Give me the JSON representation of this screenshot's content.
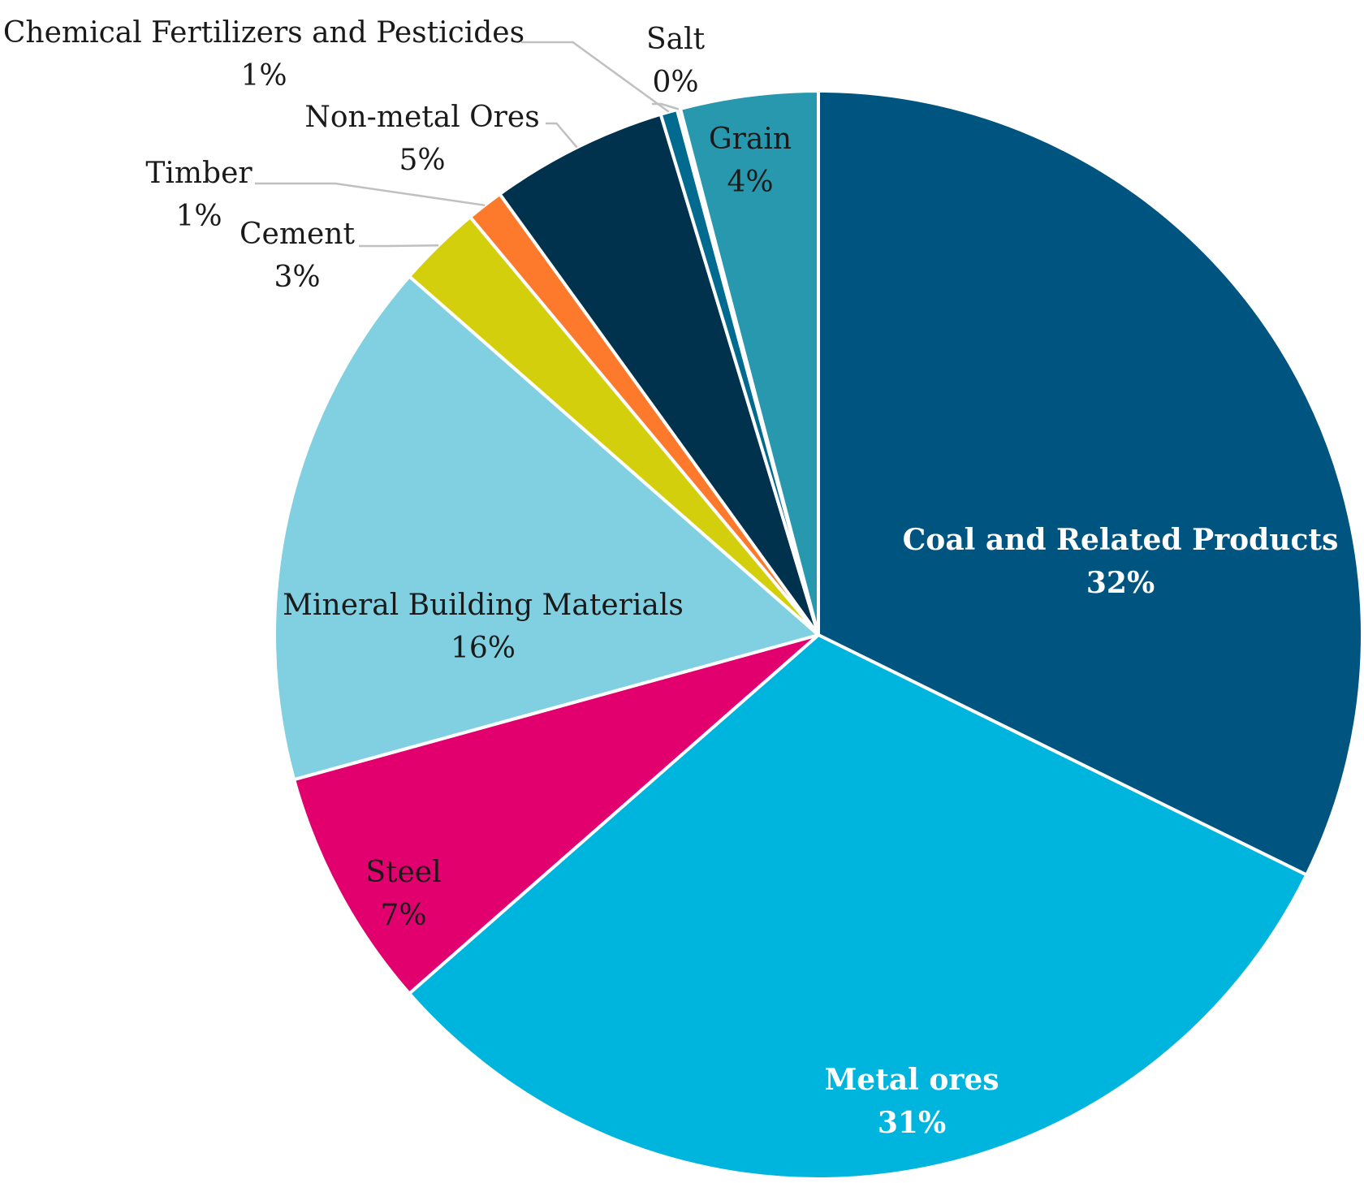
{
  "chart_data": {
    "type": "pie",
    "title": "",
    "start_angle_deg": 0,
    "direction": "clockwise",
    "slices": [
      {
        "name": "Coal and Related Products",
        "label": "Coal and Related Products",
        "pct_label": "32%",
        "value": 32.4,
        "color": "#005480",
        "label_style": "inside-light"
      },
      {
        "name": "Metal ores",
        "label": "Metal ores",
        "pct_label": "31%",
        "value": 31.4,
        "color": "#00b5dd",
        "label_style": "inside-light"
      },
      {
        "name": "Steel",
        "label": "Steel",
        "pct_label": "7%",
        "value": 7.2,
        "color": "#e2006f",
        "label_style": "inside-dark"
      },
      {
        "name": "Mineral Building Materials",
        "label": "Mineral Building Materials",
        "pct_label": "16%",
        "value": 15.8,
        "color": "#80d0e1",
        "label_style": "inside-dark"
      },
      {
        "name": "Cement",
        "label": "Cement",
        "pct_label": "3%",
        "value": 2.5,
        "color": "#d4cf0c",
        "label_style": "outside"
      },
      {
        "name": "Timber",
        "label": "Timber",
        "pct_label": "1%",
        "value": 1.1,
        "color": "#fd7a2c",
        "label_style": "outside"
      },
      {
        "name": "Non-metal Ores",
        "label": "Non-metal Ores",
        "pct_label": "5%",
        "value": 5.3,
        "color": "#00324d",
        "label_style": "outside"
      },
      {
        "name": "Chemical Fertilizers and Pesticides",
        "label": "Chemical Fertilizers and Pesticides",
        "pct_label": "1%",
        "value": 0.5,
        "color": "#006b8e",
        "label_style": "outside"
      },
      {
        "name": "Salt",
        "label": "Salt",
        "pct_label": "0%",
        "value": 0.1,
        "color": "#c8102e",
        "label_style": "outside"
      },
      {
        "name": "Grain",
        "label": "Grain",
        "pct_label": "4%",
        "value": 4.1,
        "color": "#2898ae",
        "label_style": "inside-dark"
      }
    ]
  }
}
